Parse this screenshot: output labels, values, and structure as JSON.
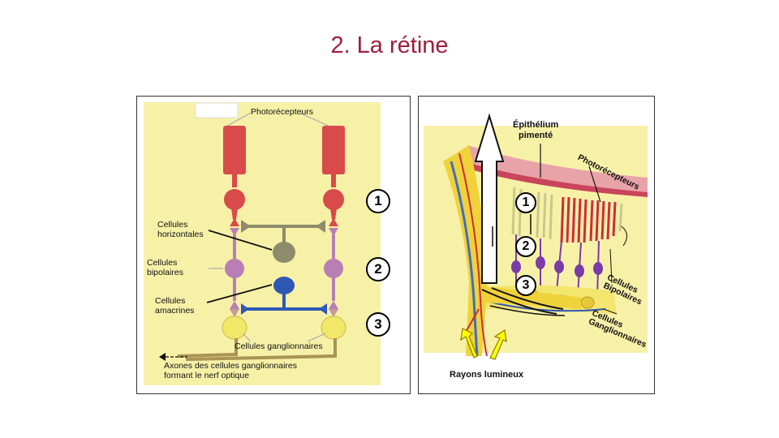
{
  "title": "2. La rétine",
  "left_diagram": {
    "labels": {
      "photoreceptors": "Photorécepteurs",
      "horizontal_cells": "Cellules\nhorizontales",
      "bipolar_cells": "Cellules\nbipolaires",
      "amacrine_cells": "Cellules\namacrines",
      "ganglion_cells": "Cellules ganglionnaires",
      "axons": "Axones des cellules ganglionnaires\nformant le nerf optique"
    },
    "markers": [
      "1",
      "2",
      "3"
    ],
    "colors": {
      "background": "#f7f1a8",
      "photoreceptor": "#d94a4a",
      "bipolar": "#b77fb3",
      "horizontal": "#8d8b6a",
      "amacrine": "#2f58b5",
      "ganglion": "#f1e86a",
      "axon": "#a99455"
    }
  },
  "right_diagram": {
    "labels": {
      "epithelium": "Épithélium\npimenté",
      "photoreceptors": "Photorécepteurs",
      "bipolar_cells": "Cellules\nBipolaires",
      "ganglion_cells": "Cellules\nGanglionnaires",
      "light_rays": "Rayons lumineux"
    },
    "markers": [
      "1",
      "2",
      "3"
    ],
    "colors": {
      "background": "#f7f1a8",
      "epithelium": "#c9455b",
      "vessel_blue": "#3f6fc2",
      "nerve_fiber": "#f0d23a",
      "arrow_yellow": "#ffff00"
    }
  }
}
